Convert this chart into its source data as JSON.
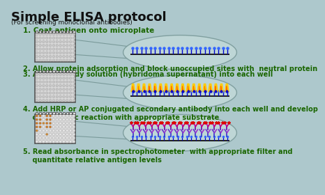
{
  "title": "Simple ELISA protocol",
  "subtitle": "(For screening monoclonal antibodies)",
  "bg_color": "#adc8cc",
  "title_color": "#111111",
  "text_color": "#1a6600",
  "steps": [
    "1. Coat antigen onto microplate",
    "2. Allow protein adsorption and block unoccupied sites with  neutral protein",
    "3. Add antibody solution (hybridoma supernatant) into each well",
    "4. Add HRP or AP conjugated secondary antibody into each well and develop\n    colorimetric reaction with appropriate substrate",
    "5. Read absorbance in spectrophotometer  with appropriate filter and\n    quantitate relative antigen levels"
  ],
  "ellipse_color": "#c0d8d8",
  "ellipse_edge": "#7a9a9a",
  "plate_border": "#555555",
  "plate_face": "#d8d8d8",
  "surface_color": "#222222",
  "antigen_color": "#0000cc",
  "antigen_head": "#3366ff"
}
